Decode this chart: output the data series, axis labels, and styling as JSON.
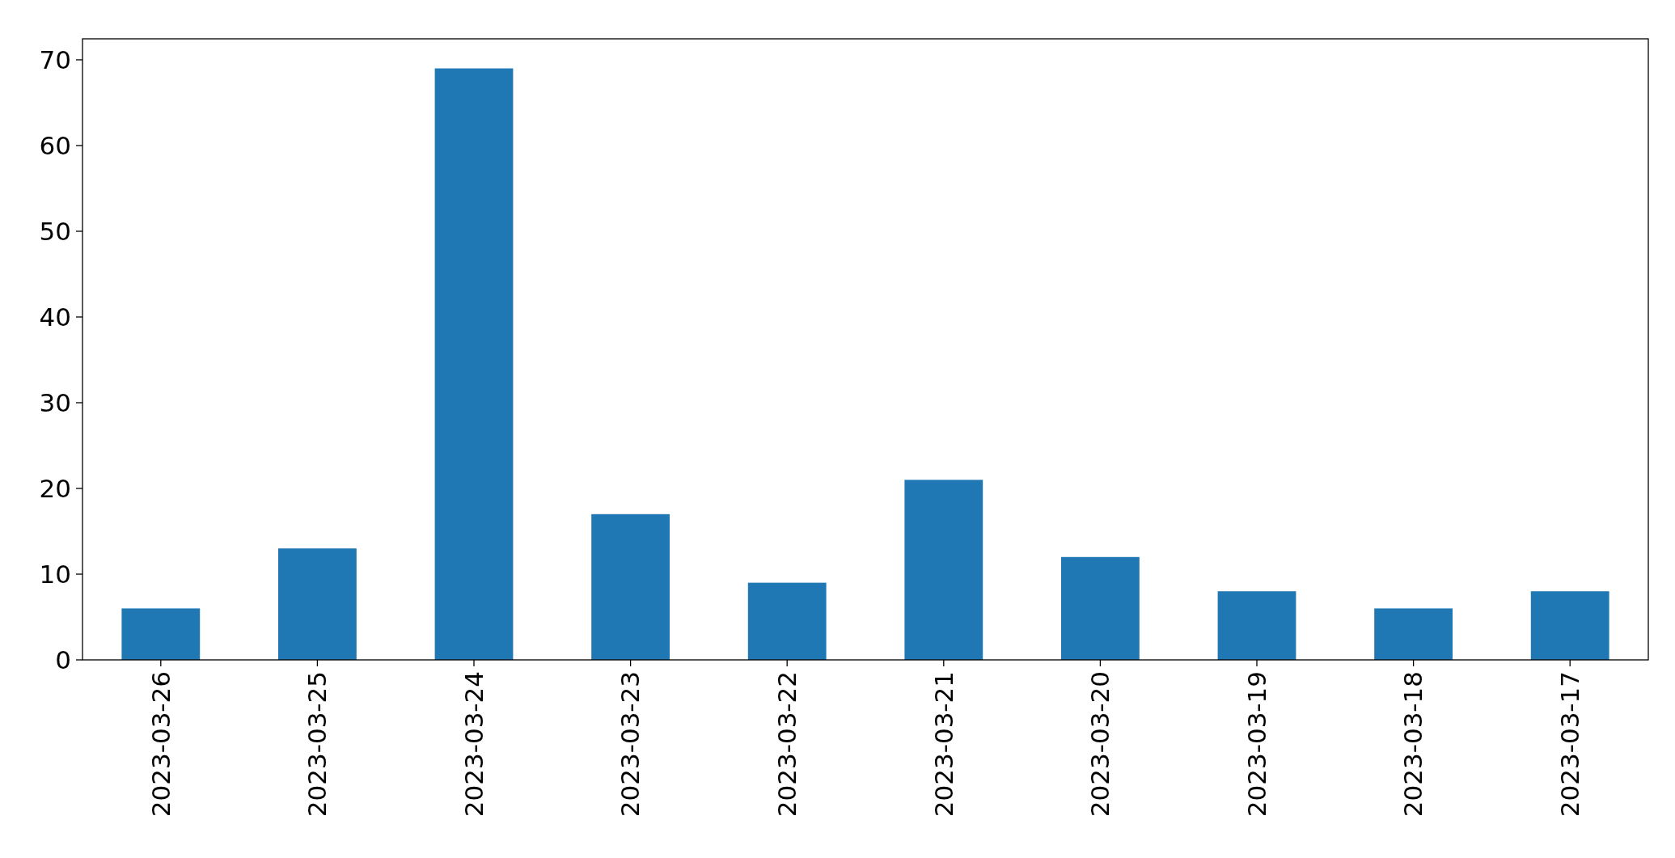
{
  "chart_data": {
    "type": "bar",
    "categories": [
      "2023-03-26",
      "2023-03-25",
      "2023-03-24",
      "2023-03-23",
      "2023-03-22",
      "2023-03-21",
      "2023-03-20",
      "2023-03-19",
      "2023-03-18",
      "2023-03-17"
    ],
    "values": [
      6,
      13,
      69,
      17,
      9,
      21,
      12,
      8,
      6,
      8
    ],
    "color": "#1f77b4",
    "ylim": [
      0,
      72.45
    ],
    "yticks": [
      0,
      10,
      20,
      30,
      40,
      50,
      60,
      70
    ]
  }
}
